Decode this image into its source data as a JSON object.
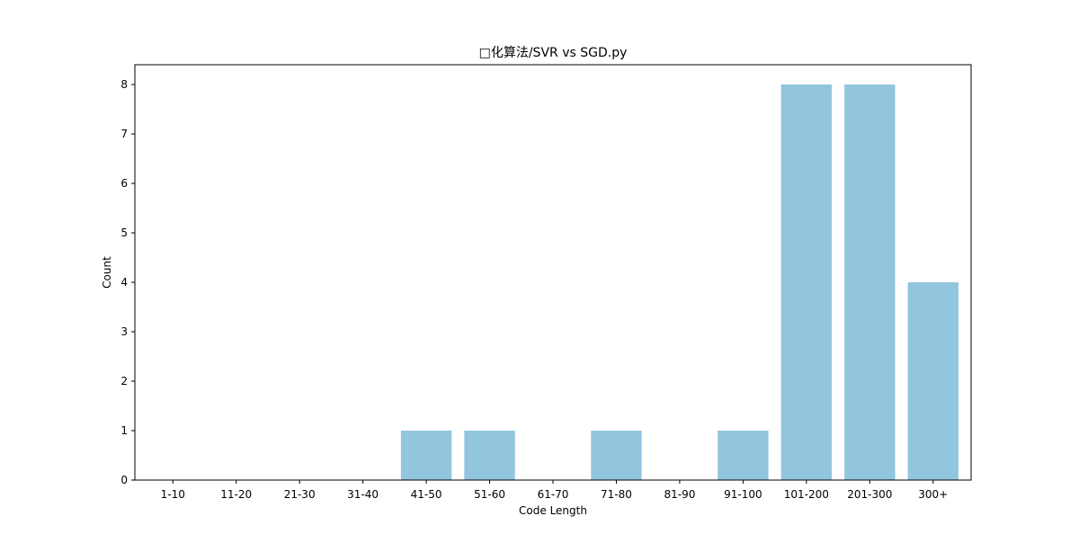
{
  "chart_data": {
    "type": "bar",
    "title": "□化算法/SVR vs SGD.py",
    "xlabel": "Code Length",
    "ylabel": "Count",
    "categories": [
      "1-10",
      "11-20",
      "21-30",
      "31-40",
      "41-50",
      "51-60",
      "61-70",
      "71-80",
      "81-90",
      "91-100",
      "101-200",
      "201-300",
      "300+"
    ],
    "values": [
      0,
      0,
      0,
      0,
      1,
      1,
      0,
      1,
      0,
      1,
      8,
      8,
      4
    ],
    "ylim": [
      0,
      8.4
    ],
    "yticks": [
      "0",
      "1",
      "2",
      "3",
      "4",
      "5",
      "6",
      "7",
      "8"
    ],
    "bar_color": "#92c5de",
    "grid": false,
    "legend": "none"
  }
}
